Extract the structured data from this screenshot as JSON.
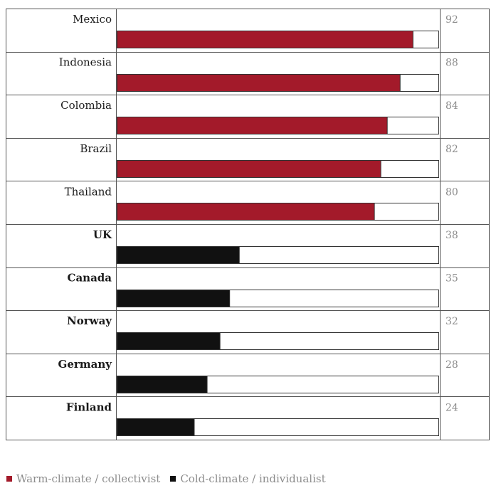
{
  "chart_data": {
    "type": "bar",
    "orientation": "horizontal",
    "categories": [
      "Mexico",
      "Indonesia",
      "Colombia",
      "Brazil",
      "Thailand",
      "UK",
      "Canada",
      "Norway",
      "Germany",
      "Finland"
    ],
    "values": [
      92,
      88,
      84,
      82,
      80,
      38,
      35,
      32,
      28,
      24
    ],
    "groups": [
      "warm",
      "warm",
      "warm",
      "warm",
      "warm",
      "cold",
      "cold",
      "cold",
      "cold",
      "cold"
    ],
    "xlim": [
      0,
      100
    ],
    "grid": false,
    "legend_position": "bottom-left",
    "legend": [
      {
        "key": "warm",
        "label": "Warm-climate / collectivist",
        "color": "#a31a2a"
      },
      {
        "key": "cold",
        "label": "Cold-climate / individualist",
        "color": "#111111"
      }
    ]
  }
}
